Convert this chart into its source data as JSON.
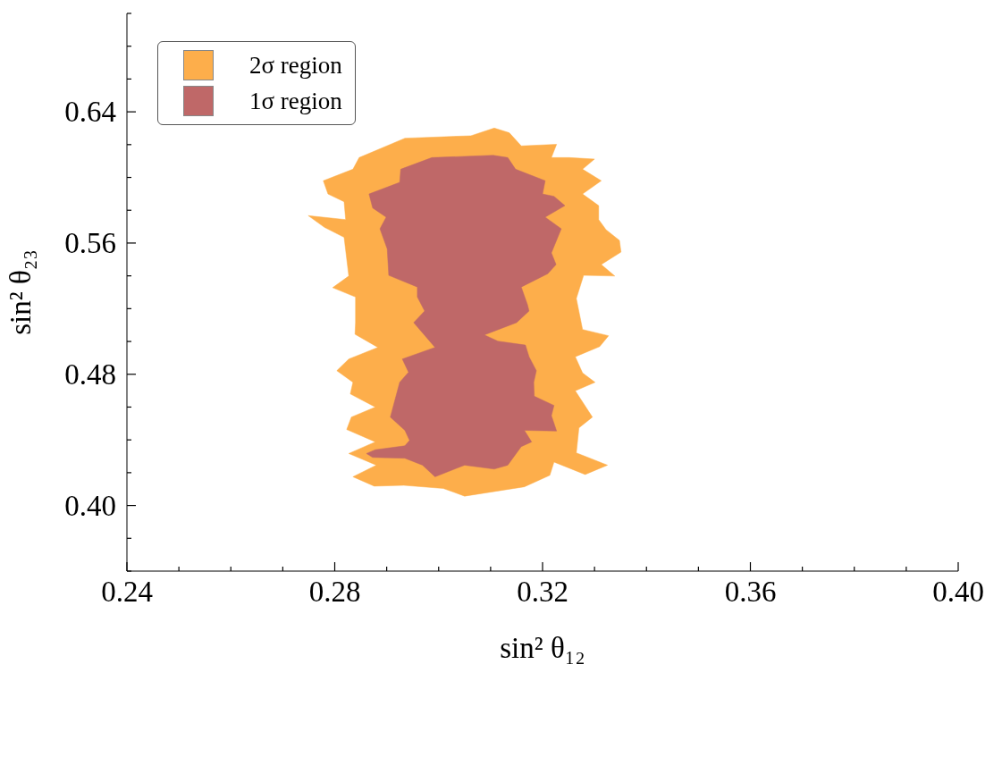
{
  "chart_data": {
    "type": "area",
    "xlabel": "sin² θ₁₂",
    "ylabel": "sin² θ₂₃",
    "xlim": [
      0.24,
      0.4
    ],
    "ylim": [
      0.36,
      0.7
    ],
    "xticks": [
      {
        "value": 0.24,
        "label": "0.24"
      },
      {
        "value": 0.25,
        "label": null
      },
      {
        "value": 0.26,
        "label": null
      },
      {
        "value": 0.27,
        "label": null
      },
      {
        "value": 0.28,
        "label": "0.28"
      },
      {
        "value": 0.29,
        "label": null
      },
      {
        "value": 0.3,
        "label": null
      },
      {
        "value": 0.31,
        "label": null
      },
      {
        "value": 0.32,
        "label": "0.32"
      },
      {
        "value": 0.33,
        "label": null
      },
      {
        "value": 0.34,
        "label": null
      },
      {
        "value": 0.35,
        "label": null
      },
      {
        "value": 0.36,
        "label": "0.36"
      },
      {
        "value": 0.37,
        "label": null
      },
      {
        "value": 0.38,
        "label": null
      },
      {
        "value": 0.39,
        "label": null
      },
      {
        "value": 0.4,
        "label": "0.40"
      }
    ],
    "yticks": [
      {
        "value": 0.36,
        "label": null
      },
      {
        "value": 0.38,
        "label": null
      },
      {
        "value": 0.4,
        "label": "0.40"
      },
      {
        "value": 0.42,
        "label": null
      },
      {
        "value": 0.44,
        "label": null
      },
      {
        "value": 0.46,
        "label": null
      },
      {
        "value": 0.48,
        "label": "0.48"
      },
      {
        "value": 0.5,
        "label": null
      },
      {
        "value": 0.52,
        "label": null
      },
      {
        "value": 0.54,
        "label": null
      },
      {
        "value": 0.56,
        "label": "0.56"
      },
      {
        "value": 0.58,
        "label": null
      },
      {
        "value": 0.6,
        "label": null
      },
      {
        "value": 0.62,
        "label": null
      },
      {
        "value": 0.64,
        "label": "0.64"
      },
      {
        "value": 0.66,
        "label": null
      },
      {
        "value": 0.68,
        "label": null
      },
      {
        "value": 0.7,
        "label": null
      }
    ],
    "grid": false,
    "legend": "top left",
    "series": [
      {
        "name": "2σ region",
        "color": "#fdae4b",
        "x": [
          0.2778,
          0.2835,
          0.2847,
          0.2935,
          0.3062,
          0.3107,
          0.3136,
          0.3159,
          0.3227,
          0.3217,
          0.3251,
          0.33,
          0.3277,
          0.3313,
          0.3277,
          0.3308,
          0.3308,
          0.3322,
          0.3348,
          0.3351,
          0.3313,
          0.3339,
          0.3279,
          0.3265,
          0.3277,
          0.3327,
          0.331,
          0.3263,
          0.3277,
          0.3301,
          0.3263,
          0.3296,
          0.327,
          0.3265,
          0.3325,
          0.3282,
          0.3222,
          0.3214,
          0.3165,
          0.305,
          0.3009,
          0.2933,
          0.2876,
          0.2835,
          0.288,
          0.2827,
          0.2878,
          0.2823,
          0.2832,
          0.2878,
          0.283,
          0.2835,
          0.2804,
          0.2827,
          0.2883,
          0.2839,
          0.284,
          0.284,
          0.2796,
          0.2827,
          0.2818,
          0.278,
          0.2749,
          0.2821,
          0.2818,
          0.2787,
          0.2778
        ],
        "values": [
          0.598,
          0.605,
          0.6121,
          0.6239,
          0.6254,
          0.6301,
          0.6272,
          0.6192,
          0.6202,
          0.6121,
          0.6121,
          0.6112,
          0.605,
          0.598,
          0.5899,
          0.5828,
          0.5743,
          0.5682,
          0.5616,
          0.5545,
          0.5469,
          0.5399,
          0.5403,
          0.5262,
          0.5073,
          0.5035,
          0.4969,
          0.4907,
          0.4808,
          0.4751,
          0.4699,
          0.4539,
          0.4473,
          0.4321,
          0.4246,
          0.4189,
          0.4265,
          0.4184,
          0.4114,
          0.4057,
          0.4104,
          0.4123,
          0.4118,
          0.4175,
          0.4246,
          0.4317,
          0.4388,
          0.4463,
          0.4539,
          0.46,
          0.468,
          0.4751,
          0.4822,
          0.4893,
          0.4964,
          0.5044,
          0.5115,
          0.5271,
          0.5328,
          0.5399,
          0.5635,
          0.5696,
          0.5767,
          0.5743,
          0.5852,
          0.5899,
          0.598
        ]
      },
      {
        "name": "1σ region",
        "color": "#bf6868",
        "x": [
          0.2987,
          0.3105,
          0.3133,
          0.3148,
          0.3205,
          0.32,
          0.3222,
          0.3243,
          0.3205,
          0.3236,
          0.3217,
          0.3226,
          0.321,
          0.3159,
          0.3171,
          0.3174,
          0.315,
          0.3088,
          0.3114,
          0.3167,
          0.3174,
          0.3188,
          0.3183,
          0.3184,
          0.3222,
          0.3217,
          0.3227,
          0.3165,
          0.3179,
          0.3159,
          0.3133,
          0.3107,
          0.305,
          0.2993,
          0.2969,
          0.2935,
          0.2873,
          0.2861,
          0.2878,
          0.2935,
          0.2944,
          0.2935,
          0.2907,
          0.2925,
          0.2942,
          0.293,
          0.2993,
          0.2952,
          0.2973,
          0.2959,
          0.2959,
          0.2904,
          0.2901,
          0.2887,
          0.2899,
          0.2873,
          0.2866,
          0.2925,
          0.2927,
          0.2987
        ],
        "values": [
          0.6121,
          0.6135,
          0.6121,
          0.605,
          0.598,
          0.5899,
          0.5885,
          0.5828,
          0.5758,
          0.5687,
          0.554,
          0.5469,
          0.5413,
          0.5332,
          0.5224,
          0.5186,
          0.5115,
          0.504,
          0.5002,
          0.4978,
          0.4907,
          0.4822,
          0.4751,
          0.4666,
          0.461,
          0.4548,
          0.4454,
          0.4458,
          0.4388,
          0.4359,
          0.4246,
          0.4222,
          0.4246,
          0.4175,
          0.4246,
          0.4288,
          0.4293,
          0.4317,
          0.434,
          0.4364,
          0.4397,
          0.4458,
          0.4539,
          0.4751,
          0.4813,
          0.4893,
          0.4964,
          0.5115,
          0.5186,
          0.5271,
          0.5332,
          0.5403,
          0.5564,
          0.5687,
          0.5758,
          0.5814,
          0.5899,
          0.597,
          0.605,
          0.6121
        ]
      }
    ]
  }
}
